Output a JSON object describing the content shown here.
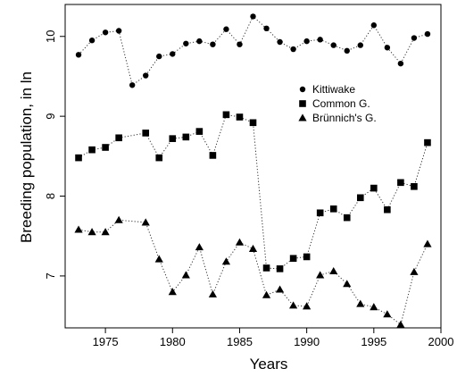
{
  "chart_data": {
    "type": "scatter",
    "xlabel": "Years",
    "ylabel": "Breeding population, in ln",
    "xlim": [
      1972,
      2000
    ],
    "ylim": [
      6.35,
      10.4
    ],
    "xticks": [
      1975,
      1980,
      1985,
      1990,
      1995,
      2000
    ],
    "yticks": [
      7,
      8,
      9,
      10
    ],
    "legend_position": "upper-right",
    "connected_by": "dotted-line",
    "series": [
      {
        "name": "Kittiwake",
        "marker": "circle",
        "x": [
          1973,
          1974,
          1975,
          1976,
          1977,
          1978,
          1979,
          1980,
          1981,
          1982,
          1983,
          1984,
          1985,
          1986,
          1987,
          1988,
          1989,
          1990,
          1991,
          1992,
          1993,
          1994,
          1995,
          1996,
          1997,
          1998,
          1999
        ],
        "values": [
          9.77,
          9.95,
          10.05,
          10.07,
          9.39,
          9.51,
          9.75,
          9.78,
          9.91,
          9.94,
          9.9,
          10.09,
          9.9,
          10.25,
          10.1,
          9.93,
          9.84,
          9.94,
          9.96,
          9.89,
          9.82,
          9.89,
          10.14,
          9.86,
          9.66,
          9.98,
          10.03
        ]
      },
      {
        "name": "Common G.",
        "marker": "square",
        "x": [
          1973,
          1974,
          1975,
          1976,
          1978,
          1979,
          1980,
          1981,
          1982,
          1983,
          1984,
          1985,
          1986,
          1987,
          1988,
          1989,
          1990,
          1991,
          1992,
          1993,
          1994,
          1995,
          1996,
          1997,
          1998,
          1999
        ],
        "values": [
          8.48,
          8.58,
          8.61,
          8.73,
          8.79,
          8.48,
          8.72,
          8.74,
          8.81,
          8.51,
          9.02,
          8.99,
          8.92,
          7.1,
          7.09,
          7.22,
          7.24,
          7.79,
          7.84,
          7.73,
          7.98,
          8.1,
          7.83,
          8.17,
          8.12,
          8.67
        ]
      },
      {
        "name": "Brünnich's G.",
        "marker": "triangle",
        "x": [
          1973,
          1974,
          1975,
          1976,
          1978,
          1979,
          1980,
          1981,
          1982,
          1983,
          1984,
          1985,
          1986,
          1987,
          1988,
          1989,
          1990,
          1991,
          1992,
          1993,
          1994,
          1995,
          1996,
          1997,
          1998,
          1999
        ],
        "values": [
          7.58,
          7.55,
          7.55,
          7.7,
          7.67,
          7.21,
          6.8,
          7.01,
          7.36,
          6.77,
          7.18,
          7.42,
          7.34,
          6.76,
          6.83,
          6.63,
          6.62,
          7.01,
          7.06,
          6.9,
          6.65,
          6.61,
          6.52,
          6.39,
          7.05,
          7.4
        ]
      }
    ]
  }
}
